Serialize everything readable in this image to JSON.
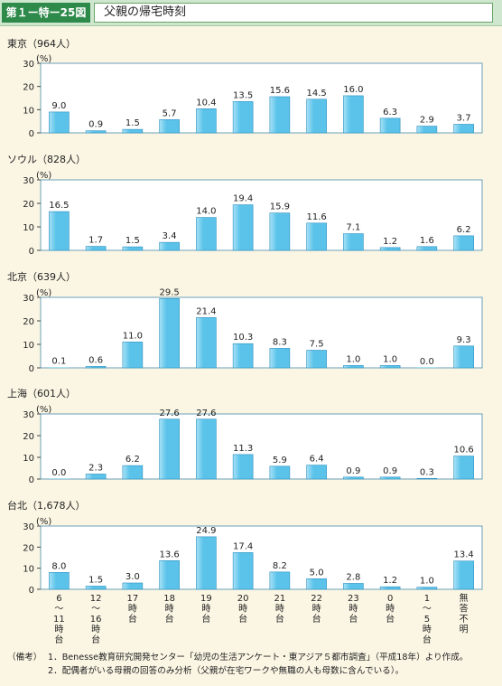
{
  "header": {
    "figure_number": "第１ー特ー25図",
    "title": "父親の帰宅時刻"
  },
  "chart_data": [
    {
      "type": "bar",
      "title": "東京（964人）",
      "ylabel": "(%)",
      "ylim": [
        0,
        30
      ],
      "yticks": [
        "0",
        "10",
        "20",
        "30"
      ],
      "categories": [
        "6〜11時台",
        "12〜16時台",
        "17時台",
        "18時台",
        "19時台",
        "20時台",
        "21時台",
        "22時台",
        "23時台",
        "0時台",
        "1〜5時台",
        "無答不明"
      ],
      "values": [
        9.0,
        0.9,
        1.5,
        5.7,
        10.4,
        13.5,
        15.6,
        14.5,
        16.0,
        6.3,
        2.9,
        3.7
      ],
      "value_labels": [
        "9.0",
        "0.9",
        "1.5",
        "5.7",
        "10.4",
        "13.5",
        "15.6",
        "14.5",
        "16.0",
        "6.3",
        "2.9",
        "3.7"
      ]
    },
    {
      "type": "bar",
      "title": "ソウル（828人）",
      "ylabel": "(%)",
      "ylim": [
        0,
        30
      ],
      "yticks": [
        "0",
        "10",
        "20",
        "30"
      ],
      "categories": [
        "6〜11時台",
        "12〜16時台",
        "17時台",
        "18時台",
        "19時台",
        "20時台",
        "21時台",
        "22時台",
        "23時台",
        "0時台",
        "1〜5時台",
        "無答不明"
      ],
      "values": [
        16.5,
        1.7,
        1.5,
        3.4,
        14.0,
        19.4,
        15.9,
        11.6,
        7.1,
        1.2,
        1.6,
        6.2
      ],
      "value_labels": [
        "16.5",
        "1.7",
        "1.5",
        "3.4",
        "14.0",
        "19.4",
        "15.9",
        "11.6",
        "7.1",
        "1.2",
        "1.6",
        "6.2"
      ]
    },
    {
      "type": "bar",
      "title": "北京（639人）",
      "ylabel": "(%)",
      "ylim": [
        0,
        30
      ],
      "yticks": [
        "0",
        "10",
        "20",
        "30"
      ],
      "categories": [
        "6〜11時台",
        "12〜16時台",
        "17時台",
        "18時台",
        "19時台",
        "20時台",
        "21時台",
        "22時台",
        "23時台",
        "0時台",
        "1〜5時台",
        "無答不明"
      ],
      "values": [
        0.1,
        0.6,
        11.0,
        29.5,
        21.4,
        10.3,
        8.3,
        7.5,
        1.0,
        1.0,
        0.0,
        9.3
      ],
      "value_labels": [
        "0.1",
        "0.6",
        "11.0",
        "29.5",
        "21.4",
        "10.3",
        "8.3",
        "7.5",
        "1.0",
        "1.0",
        "0.0",
        "9.3"
      ]
    },
    {
      "type": "bar",
      "title": "上海（601人）",
      "ylabel": "(%)",
      "ylim": [
        0,
        30
      ],
      "yticks": [
        "0",
        "10",
        "20",
        "30"
      ],
      "categories": [
        "6〜11時台",
        "12〜16時台",
        "17時台",
        "18時台",
        "19時台",
        "20時台",
        "21時台",
        "22時台",
        "23時台",
        "0時台",
        "1〜5時台",
        "無答不明"
      ],
      "values": [
        0.0,
        2.3,
        6.2,
        27.6,
        27.6,
        11.3,
        5.9,
        6.4,
        0.9,
        0.9,
        0.3,
        10.6
      ],
      "value_labels": [
        "0.0",
        "2.3",
        "6.2",
        "27.6",
        "27.6",
        "11.3",
        "5.9",
        "6.4",
        "0.9",
        "0.9",
        "0.3",
        "10.6"
      ]
    },
    {
      "type": "bar",
      "title": "台北（1,678人）",
      "ylabel": "(%)",
      "ylim": [
        0,
        30
      ],
      "yticks": [
        "0",
        "10",
        "20",
        "30"
      ],
      "categories": [
        "6〜11時台",
        "12〜16時台",
        "17時台",
        "18時台",
        "19時台",
        "20時台",
        "21時台",
        "22時台",
        "23時台",
        "0時台",
        "1〜5時台",
        "無答不明"
      ],
      "values": [
        8.0,
        1.5,
        3.0,
        13.6,
        24.9,
        17.4,
        8.2,
        5.0,
        2.8,
        1.2,
        1.0,
        13.4
      ],
      "value_labels": [
        "8.0",
        "1.5",
        "3.0",
        "13.6",
        "24.9",
        "17.4",
        "8.2",
        "5.0",
        "2.8",
        "1.2",
        "1.0",
        "13.4"
      ]
    }
  ],
  "x_tick_labels": [
    [
      "6",
      "〜",
      "11",
      "時",
      "台"
    ],
    [
      "12",
      "〜",
      "16",
      "時",
      "台"
    ],
    [
      "17",
      "時",
      "台"
    ],
    [
      "18",
      "時",
      "台"
    ],
    [
      "19",
      "時",
      "台"
    ],
    [
      "20",
      "時",
      "台"
    ],
    [
      "21",
      "時",
      "台"
    ],
    [
      "22",
      "時",
      "台"
    ],
    [
      "23",
      "時",
      "台"
    ],
    [
      "0",
      "時",
      "台"
    ],
    [
      "1",
      "〜",
      "5",
      "時",
      "台"
    ],
    [
      "無",
      "答",
      "不",
      "明"
    ]
  ],
  "notes": {
    "label": "（備考）",
    "line1": "1．Benesse教育研究開発センター「幼児の生活アンケート・東アジア５都市調査」（平成18年）より作成。",
    "line2": "2．配偶者がいる母親の回答のみ分析（父親が在宅ワークや無職の人も母数に含んでいる）。"
  },
  "colors": {
    "bar_fill": "#5bc3ea",
    "bar_highlight": "#a9e2f6",
    "bar_edge": "#2b8fc0",
    "panel_bg": "#ffffff",
    "page_bg": "#fbf6e4",
    "header_green": "#2e8a4a"
  }
}
